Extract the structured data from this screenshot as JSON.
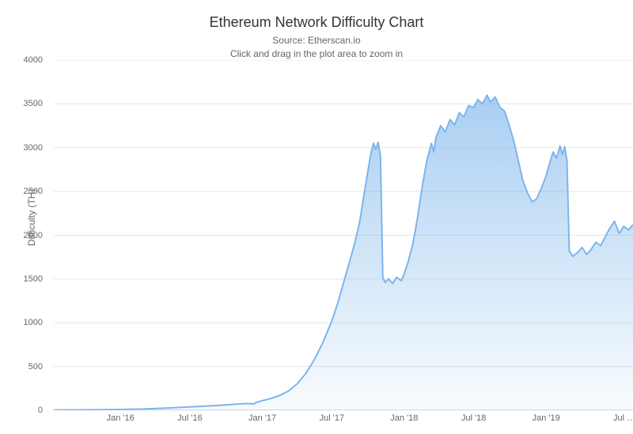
{
  "chart": {
    "type": "area",
    "title": "Ethereum Network Difficulty Chart",
    "subtitle_line1": "Source: Etherscan.io",
    "subtitle_line2": "Click and drag in the plot area to zoom in",
    "title_fontsize": 18,
    "subtitle_fontsize": 12,
    "title_color": "#333333",
    "subtitle_color": "#666666",
    "background_color": "#ffffff",
    "plot_background": "#ffffff",
    "grid_color": "#e6e6e6",
    "axis_line_color": "#ccd6eb",
    "tick_color": "#666666",
    "tick_fontsize": 11,
    "y_axis": {
      "label": "Difficulty (TH)",
      "min": 0,
      "max": 4000,
      "tick_step": 500,
      "ticks": [
        0,
        500,
        1000,
        1500,
        2000,
        2500,
        3000,
        3500,
        4000
      ]
    },
    "x_axis": {
      "tick_labels": [
        "Jan '16",
        "Jul '16",
        "Jan '17",
        "Jul '17",
        "Jan '18",
        "Jul '18",
        "Jan '19",
        "Jul …"
      ],
      "tick_positions_t": [
        0.115,
        0.235,
        0.36,
        0.48,
        0.605,
        0.725,
        0.85,
        0.985
      ]
    },
    "series": {
      "line_color": "#7cb5ec",
      "line_width": 2,
      "fill_from": "rgba(124,181,236,0.65)",
      "fill_to": "rgba(124,181,236,0.05)",
      "data": [
        [
          0.0,
          2
        ],
        [
          0.02,
          4
        ],
        [
          0.04,
          5
        ],
        [
          0.06,
          6
        ],
        [
          0.08,
          7
        ],
        [
          0.1,
          8
        ],
        [
          0.115,
          9
        ],
        [
          0.13,
          11
        ],
        [
          0.15,
          14
        ],
        [
          0.17,
          18
        ],
        [
          0.19,
          24
        ],
        [
          0.21,
          30
        ],
        [
          0.235,
          38
        ],
        [
          0.255,
          45
        ],
        [
          0.275,
          52
        ],
        [
          0.295,
          60
        ],
        [
          0.315,
          70
        ],
        [
          0.335,
          78
        ],
        [
          0.345,
          72
        ],
        [
          0.35,
          90
        ],
        [
          0.36,
          110
        ],
        [
          0.375,
          135
        ],
        [
          0.39,
          170
        ],
        [
          0.405,
          220
        ],
        [
          0.42,
          300
        ],
        [
          0.435,
          420
        ],
        [
          0.45,
          580
        ],
        [
          0.465,
          780
        ],
        [
          0.48,
          1020
        ],
        [
          0.49,
          1220
        ],
        [
          0.5,
          1450
        ],
        [
          0.51,
          1680
        ],
        [
          0.52,
          1920
        ],
        [
          0.528,
          2150
        ],
        [
          0.536,
          2480
        ],
        [
          0.542,
          2720
        ],
        [
          0.548,
          2950
        ],
        [
          0.552,
          3050
        ],
        [
          0.556,
          2980
        ],
        [
          0.56,
          3060
        ],
        [
          0.564,
          2900
        ],
        [
          0.568,
          1520
        ],
        [
          0.572,
          1460
        ],
        [
          0.578,
          1500
        ],
        [
          0.585,
          1450
        ],
        [
          0.592,
          1520
        ],
        [
          0.6,
          1480
        ],
        [
          0.605,
          1560
        ],
        [
          0.612,
          1700
        ],
        [
          0.62,
          1900
        ],
        [
          0.628,
          2200
        ],
        [
          0.636,
          2550
        ],
        [
          0.644,
          2850
        ],
        [
          0.652,
          3050
        ],
        [
          0.656,
          2950
        ],
        [
          0.66,
          3120
        ],
        [
          0.668,
          3250
        ],
        [
          0.676,
          3180
        ],
        [
          0.684,
          3320
        ],
        [
          0.692,
          3260
        ],
        [
          0.7,
          3400
        ],
        [
          0.708,
          3350
        ],
        [
          0.716,
          3480
        ],
        [
          0.725,
          3460
        ],
        [
          0.732,
          3550
        ],
        [
          0.74,
          3500
        ],
        [
          0.748,
          3600
        ],
        [
          0.754,
          3520
        ],
        [
          0.762,
          3580
        ],
        [
          0.77,
          3460
        ],
        [
          0.778,
          3420
        ],
        [
          0.786,
          3260
        ],
        [
          0.794,
          3080
        ],
        [
          0.802,
          2850
        ],
        [
          0.81,
          2620
        ],
        [
          0.818,
          2480
        ],
        [
          0.826,
          2380
        ],
        [
          0.834,
          2420
        ],
        [
          0.842,
          2540
        ],
        [
          0.85,
          2680
        ],
        [
          0.856,
          2820
        ],
        [
          0.862,
          2950
        ],
        [
          0.868,
          2880
        ],
        [
          0.874,
          3020
        ],
        [
          0.878,
          2920
        ],
        [
          0.882,
          3010
        ],
        [
          0.886,
          2850
        ],
        [
          0.89,
          1820
        ],
        [
          0.896,
          1760
        ],
        [
          0.904,
          1800
        ],
        [
          0.912,
          1860
        ],
        [
          0.92,
          1780
        ],
        [
          0.928,
          1840
        ],
        [
          0.936,
          1920
        ],
        [
          0.944,
          1880
        ],
        [
          0.952,
          1980
        ],
        [
          0.96,
          2080
        ],
        [
          0.968,
          2160
        ],
        [
          0.976,
          2020
        ],
        [
          0.984,
          2100
        ],
        [
          0.992,
          2060
        ],
        [
          1.0,
          2120
        ]
      ]
    }
  }
}
